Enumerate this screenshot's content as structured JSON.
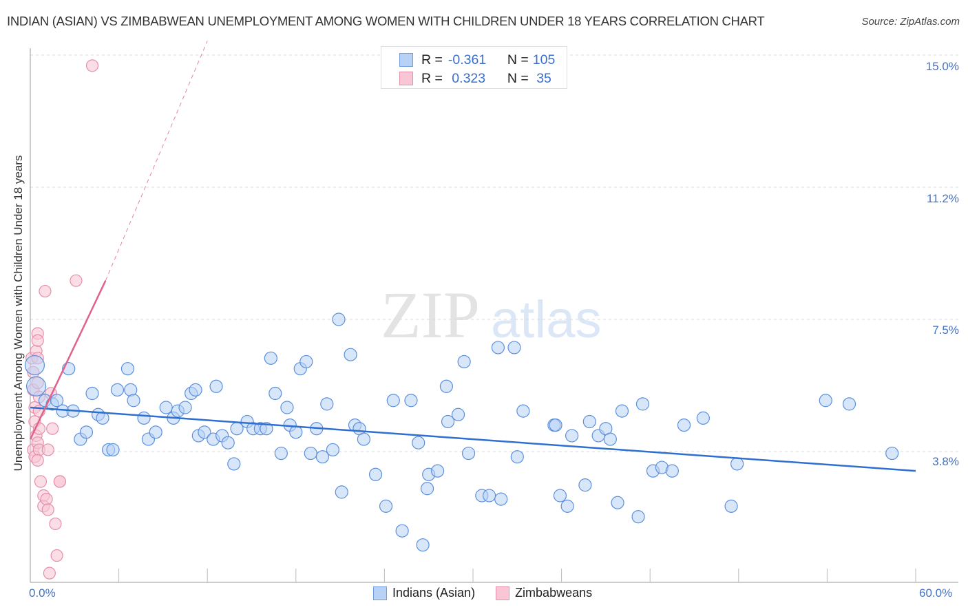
{
  "header": {
    "title": "INDIAN (ASIAN) VS ZIMBABWEAN UNEMPLOYMENT AMONG WOMEN WITH CHILDREN UNDER 18 YEARS CORRELATION CHART",
    "source": "Source: ZipAtlas.com"
  },
  "watermark": {
    "zip": "ZIP",
    "atlas": "atlas"
  },
  "legend_top": {
    "rows": [
      {
        "r_label": "R =",
        "r_value": "-0.361",
        "n_label": "N =",
        "n_value": "105",
        "color": "#b8d2f5",
        "border": "#6f9de0"
      },
      {
        "r_label": "R =",
        "r_value": " 0.323",
        "n_label": "N =",
        "n_value": " 35",
        "color": "#f9c6d6",
        "border": "#e58fab"
      }
    ]
  },
  "legend_bottom": {
    "items": [
      {
        "label": "Indians (Asian)",
        "color": "#b8d2f5",
        "border": "#6f9de0"
      },
      {
        "label": "Zimbabweans",
        "color": "#f9c6d6",
        "border": "#e58fab"
      }
    ]
  },
  "axes": {
    "y_label": "Unemployment Among Women with Children Under 18 years",
    "y_ticks": [
      "15.0%",
      "11.2%",
      "7.5%",
      "3.8%"
    ],
    "x_ticks": [
      "0.0%",
      "60.0%"
    ]
  },
  "colors": {
    "blue_fill": "#b8d2f5",
    "blue_stroke": "#5b8fdc",
    "blue_line": "#2e6fd0",
    "pink_fill": "#f9c6d6",
    "pink_stroke": "#e58fab",
    "pink_line": "#e0628a",
    "grid": "#d9d9d9",
    "axis": "#bbbbbb"
  },
  "chart_data": {
    "type": "scatter",
    "title": "INDIAN (ASIAN) VS ZIMBABWEAN UNEMPLOYMENT AMONG WOMEN WITH CHILDREN UNDER 18 YEARS CORRELATION CHART",
    "xlabel": "",
    "ylabel": "Unemployment Among Women with Children Under 18 years",
    "xlim": [
      0,
      60
    ],
    "ylim": [
      0,
      15.4
    ],
    "x_ticks": [
      0,
      60
    ],
    "y_ticks": [
      3.8,
      7.5,
      11.2,
      15.0
    ],
    "grid": true,
    "legend_position": "bottom",
    "series": [
      {
        "name": "Indians (Asian)",
        "r": -0.361,
        "n": 105,
        "trend": {
          "x0": 0,
          "y0": 5.0,
          "x1": 60,
          "y1": 3.2
        },
        "points": [
          [
            0.3,
            6.2
          ],
          [
            0.4,
            5.6
          ],
          [
            1.0,
            5.2
          ],
          [
            1.5,
            5.1
          ],
          [
            1.8,
            5.2
          ],
          [
            2.2,
            4.9
          ],
          [
            2.6,
            6.1
          ],
          [
            2.9,
            4.9
          ],
          [
            3.4,
            4.1
          ],
          [
            3.8,
            4.3
          ],
          [
            4.2,
            5.4
          ],
          [
            4.6,
            4.8
          ],
          [
            4.9,
            4.7
          ],
          [
            5.3,
            3.8
          ],
          [
            5.6,
            3.8
          ],
          [
            5.9,
            5.5
          ],
          [
            6.6,
            6.1
          ],
          [
            6.8,
            5.5
          ],
          [
            7.0,
            5.2
          ],
          [
            7.7,
            4.7
          ],
          [
            8.0,
            4.1
          ],
          [
            8.5,
            4.3
          ],
          [
            9.2,
            5.0
          ],
          [
            9.7,
            4.7
          ],
          [
            10.0,
            4.9
          ],
          [
            10.5,
            5.0
          ],
          [
            10.9,
            5.4
          ],
          [
            11.2,
            5.5
          ],
          [
            11.4,
            4.2
          ],
          [
            11.8,
            4.3
          ],
          [
            12.4,
            4.1
          ],
          [
            12.6,
            5.6
          ],
          [
            13.0,
            4.2
          ],
          [
            13.4,
            4.0
          ],
          [
            13.8,
            3.4
          ],
          [
            14.0,
            4.4
          ],
          [
            14.7,
            4.6
          ],
          [
            15.1,
            4.4
          ],
          [
            15.6,
            4.4
          ],
          [
            16.0,
            4.4
          ],
          [
            16.3,
            6.4
          ],
          [
            16.6,
            5.4
          ],
          [
            17.0,
            3.7
          ],
          [
            17.4,
            5.0
          ],
          [
            17.6,
            4.5
          ],
          [
            18.0,
            4.3
          ],
          [
            18.3,
            6.1
          ],
          [
            18.7,
            6.3
          ],
          [
            19.0,
            3.7
          ],
          [
            19.4,
            4.4
          ],
          [
            19.8,
            3.6
          ],
          [
            20.1,
            5.1
          ],
          [
            20.5,
            3.8
          ],
          [
            20.9,
            7.5
          ],
          [
            21.1,
            2.6
          ],
          [
            21.7,
            6.5
          ],
          [
            22.0,
            4.5
          ],
          [
            22.3,
            4.4
          ],
          [
            22.6,
            4.1
          ],
          [
            23.4,
            3.1
          ],
          [
            24.1,
            2.2
          ],
          [
            24.6,
            5.2
          ],
          [
            25.2,
            1.5
          ],
          [
            25.8,
            5.2
          ],
          [
            26.3,
            4.0
          ],
          [
            26.6,
            1.1
          ],
          [
            26.9,
            2.7
          ],
          [
            27.0,
            3.1
          ],
          [
            27.6,
            3.2
          ],
          [
            28.2,
            5.6
          ],
          [
            28.3,
            4.6
          ],
          [
            29.0,
            4.8
          ],
          [
            29.4,
            6.3
          ],
          [
            29.7,
            3.7
          ],
          [
            30.6,
            2.5
          ],
          [
            31.1,
            2.5
          ],
          [
            31.7,
            6.7
          ],
          [
            31.9,
            2.4
          ],
          [
            32.8,
            6.7
          ],
          [
            33.0,
            3.6
          ],
          [
            33.4,
            4.9
          ],
          [
            35.5,
            4.5
          ],
          [
            35.6,
            4.5
          ],
          [
            35.9,
            2.5
          ],
          [
            36.4,
            2.2
          ],
          [
            36.7,
            4.2
          ],
          [
            37.6,
            2.8
          ],
          [
            37.9,
            4.6
          ],
          [
            38.5,
            4.2
          ],
          [
            39.0,
            4.4
          ],
          [
            39.3,
            4.1
          ],
          [
            39.8,
            2.3
          ],
          [
            40.1,
            4.9
          ],
          [
            41.2,
            1.9
          ],
          [
            41.5,
            5.1
          ],
          [
            42.2,
            3.2
          ],
          [
            42.8,
            3.3
          ],
          [
            43.5,
            3.2
          ],
          [
            44.3,
            4.5
          ],
          [
            45.6,
            4.7
          ],
          [
            47.5,
            2.2
          ],
          [
            47.9,
            3.4
          ],
          [
            53.9,
            5.2
          ],
          [
            55.5,
            5.1
          ],
          [
            58.4,
            3.7
          ]
        ]
      },
      {
        "name": "Zimbabweans",
        "r": 0.323,
        "n": 35,
        "trend": {
          "x0": 0,
          "y0": 4.1,
          "x1": 5.1,
          "y1": 8.6,
          "dashed_to": {
            "x": 12.0,
            "y": 15.4
          }
        },
        "points": [
          [
            0.1,
            6.4
          ],
          [
            0.2,
            6.0
          ],
          [
            0.2,
            5.5
          ],
          [
            0.3,
            5.0
          ],
          [
            0.3,
            4.6
          ],
          [
            0.4,
            4.2
          ],
          [
            0.2,
            3.8
          ],
          [
            0.3,
            3.6
          ],
          [
            0.4,
            6.6
          ],
          [
            0.5,
            7.1
          ],
          [
            0.5,
            6.9
          ],
          [
            0.5,
            6.4
          ],
          [
            0.5,
            5.7
          ],
          [
            0.6,
            5.3
          ],
          [
            0.6,
            4.9
          ],
          [
            0.6,
            4.4
          ],
          [
            0.5,
            4.0
          ],
          [
            0.6,
            3.8
          ],
          [
            0.5,
            3.5
          ],
          [
            0.7,
            2.9
          ],
          [
            0.9,
            2.5
          ],
          [
            0.9,
            2.2
          ],
          [
            1.0,
            8.3
          ],
          [
            1.1,
            2.4
          ],
          [
            1.2,
            2.1
          ],
          [
            1.3,
            0.3
          ],
          [
            1.4,
            5.4
          ],
          [
            1.5,
            4.4
          ],
          [
            1.7,
            1.7
          ],
          [
            1.8,
            0.8
          ],
          [
            2.0,
            2.9
          ],
          [
            2.0,
            2.9
          ],
          [
            1.2,
            3.8
          ],
          [
            3.1,
            8.6
          ],
          [
            4.2,
            14.7
          ]
        ]
      }
    ]
  }
}
